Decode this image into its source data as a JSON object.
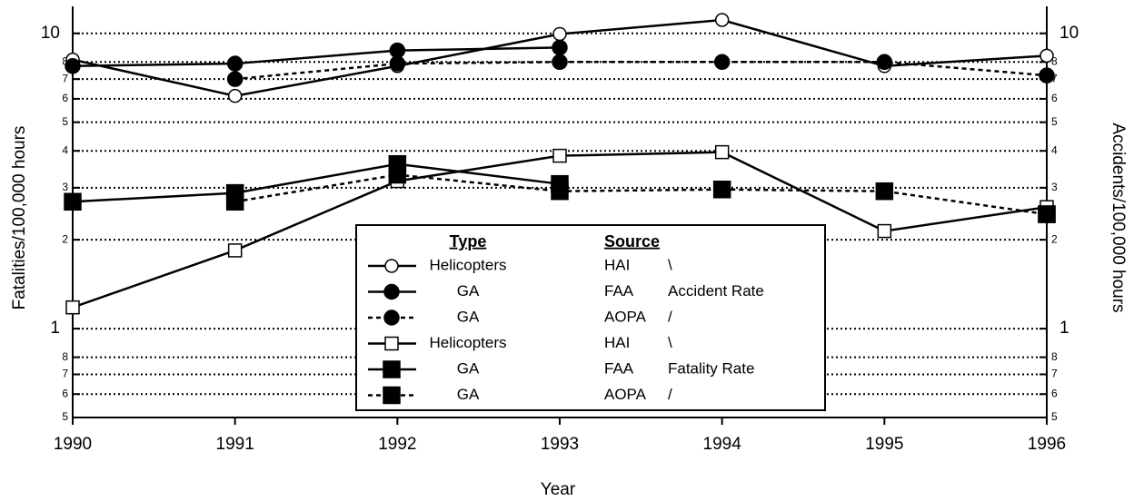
{
  "chart_data": {
    "type": "line",
    "x_label": "Year",
    "y_label": "Fatalities/100,000 hours",
    "y2_label": "Accidents/100,000 hours",
    "categories": [
      "1990",
      "1991",
      "1992",
      "1993",
      "1994",
      "1995",
      "1996"
    ],
    "log_scale": true,
    "grid": true,
    "ylim": [
      0.5,
      12
    ],
    "yticks": [
      10,
      {
        "value": 8,
        "label": "8"
      },
      {
        "value": 7,
        "label": "7"
      },
      {
        "value": 6,
        "label": "6"
      },
      {
        "value": 5,
        "label": "5"
      },
      {
        "value": 4,
        "label": "4"
      },
      {
        "value": 3,
        "label": "3"
      },
      {
        "value": 2,
        "label": "2"
      },
      1,
      {
        "value": 0.8,
        "label": "8"
      },
      {
        "value": 0.7,
        "label": "7"
      },
      {
        "value": 0.6,
        "label": "6"
      },
      {
        "value": 0.5,
        "label": "5"
      }
    ],
    "y2lim": [
      0.5,
      12
    ],
    "y2ticks": [
      10,
      {
        "value": 8,
        "label": "8"
      },
      {
        "value": 7,
        "label": "7"
      },
      {
        "value": 6,
        "label": "6"
      },
      {
        "value": 5,
        "label": "5"
      },
      {
        "value": 4,
        "label": "4"
      },
      {
        "value": 3,
        "label": "3"
      },
      {
        "value": 2,
        "label": "2"
      },
      1,
      {
        "value": 0.8,
        "label": "8"
      },
      {
        "value": 0.7,
        "label": "7"
      },
      {
        "value": 0.6,
        "label": "6"
      },
      {
        "value": 0.5,
        "label": "5"
      }
    ],
    "legend_headers": [
      "Type",
      "Source"
    ],
    "legend_notes": [
      "\\",
      "Accident Rate",
      "/",
      "\\",
      "Fatality Rate",
      "/"
    ],
    "series": [
      {
        "name": "Helicopters",
        "source": "HAI",
        "color": "#000000",
        "marker": "circle",
        "filled": false,
        "dashed": false,
        "axis": "y2",
        "values": [
          8.15,
          6.14,
          7.75,
          9.95,
          11.1,
          7.75,
          8.4
        ]
      },
      {
        "name": "GA",
        "source": "FAA",
        "color": "#000000",
        "marker": "circle",
        "filled": true,
        "dashed": false,
        "axis": "y2",
        "values": [
          7.75,
          7.9,
          8.75,
          8.95,
          null,
          null,
          null
        ]
      },
      {
        "name": "GA",
        "source": "AOPA",
        "color": "#000000",
        "marker": "circle",
        "filled": true,
        "dashed": true,
        "axis": "y2",
        "values": [
          null,
          7.0,
          7.9,
          8.0,
          8.0,
          8.0,
          7.2
        ]
      },
      {
        "name": "Helicopters",
        "source": "HAI",
        "color": "#000000",
        "marker": "square",
        "filled": false,
        "dashed": false,
        "values": [
          1.18,
          1.84,
          3.16,
          3.85,
          3.96,
          2.14,
          2.58
        ]
      },
      {
        "name": "GA",
        "source": "FAA",
        "color": "#000000",
        "marker": "square",
        "filled": true,
        "dashed": false,
        "values": [
          2.69,
          2.88,
          3.61,
          3.09,
          null,
          null,
          2.44
        ]
      },
      {
        "name": "GA",
        "source": "AOPA",
        "color": "#000000",
        "marker": "square",
        "filled": true,
        "dashed": true,
        "values": [
          null,
          2.69,
          3.32,
          2.92,
          2.96,
          2.92,
          2.44
        ]
      }
    ]
  }
}
